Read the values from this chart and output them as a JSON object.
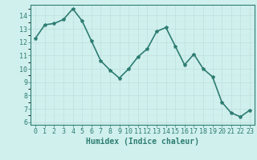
{
  "x": [
    0,
    1,
    2,
    3,
    4,
    5,
    6,
    7,
    8,
    9,
    10,
    11,
    12,
    13,
    14,
    15,
    16,
    17,
    18,
    19,
    20,
    21,
    22,
    23
  ],
  "y": [
    12.3,
    13.3,
    13.4,
    13.7,
    14.5,
    13.6,
    12.1,
    10.6,
    9.9,
    9.3,
    10.0,
    10.9,
    11.5,
    12.8,
    13.1,
    11.7,
    10.3,
    11.1,
    10.0,
    9.4,
    7.5,
    6.7,
    6.4,
    6.9
  ],
  "line_color": "#2e7d72",
  "marker": "*",
  "marker_size": 3,
  "bg_color": "#d0f0ee",
  "grid_major_color": "#c0dedd",
  "grid_minor_color": "#c8e8e6",
  "xlabel": "Humidex (Indice chaleur)",
  "xlabel_fontsize": 7,
  "ylim": [
    5.8,
    14.8
  ],
  "xlim": [
    -0.5,
    23.5
  ],
  "yticks": [
    6,
    7,
    8,
    9,
    10,
    11,
    12,
    13,
    14
  ],
  "xticks": [
    0,
    1,
    2,
    3,
    4,
    5,
    6,
    7,
    8,
    9,
    10,
    11,
    12,
    13,
    14,
    15,
    16,
    17,
    18,
    19,
    20,
    21,
    22,
    23
  ],
  "tick_fontsize": 6,
  "linewidth": 1.2
}
